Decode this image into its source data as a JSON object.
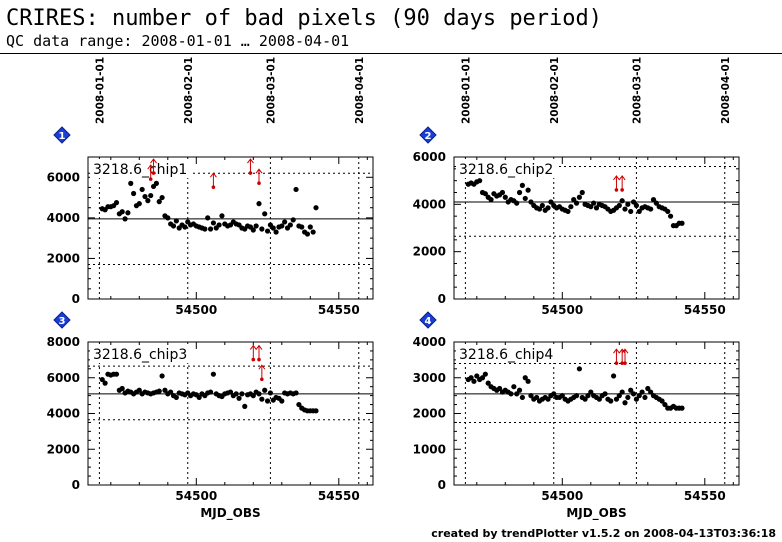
{
  "header": {
    "title": "CRIRES: number of bad pixels (90 days period)",
    "subtitle": "QC data range: 2008-01-01 … 2008-04-01"
  },
  "footer": {
    "text": "created by trendPlotter v1.5.2 on 2008-04-13T03:36:18"
  },
  "colors": {
    "points": "#000000",
    "outliers": "#cc0000",
    "badge": "#1a3fd6",
    "grid": "#000000"
  },
  "date_ticks": [
    {
      "label": "2008-01-01",
      "mjd": 54466
    },
    {
      "label": "2008-02-01",
      "mjd": 54497
    },
    {
      "label": "2008-03-01",
      "mjd": 54526
    },
    {
      "label": "2008-04-01",
      "mjd": 54557
    }
  ],
  "chart_data": [
    {
      "type": "scatter",
      "badge": "1",
      "label": "3218.6_chip1",
      "xlabel": "",
      "xlim": [
        54462,
        54562
      ],
      "ylim": [
        0,
        7000
      ],
      "yticks": [
        0,
        2000,
        4000,
        6000
      ],
      "xticks": [
        54500,
        54550
      ],
      "mean": 3950,
      "lower_limit": 1700,
      "upper_limit": 6200,
      "x": [
        54467,
        54468,
        54469,
        54470,
        54471,
        54472,
        54473,
        54474,
        54475,
        54476,
        54477,
        54478,
        54479,
        54480,
        54481,
        54482,
        54483,
        54484,
        54485,
        54486,
        54487,
        54488,
        54489,
        54490,
        54491,
        54492,
        54493,
        54494,
        54495,
        54496,
        54497,
        54498,
        54499,
        54500,
        54501,
        54502,
        54503,
        54504,
        54505,
        54506,
        54507,
        54508,
        54509,
        54510,
        54511,
        54512,
        54513,
        54514,
        54515,
        54516,
        54517,
        54518,
        54519,
        54520,
        54521,
        54522,
        54523,
        54524,
        54525,
        54526,
        54527,
        54528,
        54529,
        54530,
        54531,
        54532,
        54533,
        54534,
        54535,
        54536,
        54537,
        54538,
        54539,
        54540,
        54541,
        54542
      ],
      "y": [
        4450,
        4400,
        4550,
        4550,
        4600,
        4750,
        4200,
        4300,
        3950,
        4250,
        5700,
        5200,
        4600,
        4700,
        5400,
        5050,
        4850,
        5100,
        5550,
        5700,
        4800,
        5000,
        4100,
        4000,
        3700,
        3600,
        3850,
        3500,
        3650,
        3550,
        3800,
        3650,
        3700,
        3600,
        3550,
        3500,
        3450,
        4000,
        3450,
        3750,
        3500,
        3650,
        4100,
        3700,
        3600,
        3650,
        3800,
        3700,
        3650,
        3500,
        3450,
        3600,
        3550,
        3400,
        3600,
        4700,
        3450,
        4200,
        3350,
        3650,
        3500,
        3300,
        3550,
        3600,
        3800,
        3500,
        3650,
        3900,
        5400,
        3600,
        3550,
        3300,
        3200,
        3550,
        3300,
        4500
      ],
      "outliers": [
        {
          "x": 54484,
          "y": 6600
        },
        {
          "x": 54485,
          "y": 6900
        },
        {
          "x": 54506,
          "y": 6200
        },
        {
          "x": 54519,
          "y": 6900
        },
        {
          "x": 54522,
          "y": 6400
        }
      ]
    },
    {
      "type": "scatter",
      "badge": "2",
      "label": "3218.6_chip2",
      "xlabel": "",
      "xlim": [
        54462,
        54562
      ],
      "ylim": [
        0,
        6000
      ],
      "yticks": [
        0,
        2000,
        4000,
        6000
      ],
      "xticks": [
        54500,
        54550
      ],
      "mean": 4100,
      "lower_limit": 2650,
      "upper_limit": 5600,
      "x": [
        54467,
        54468,
        54469,
        54470,
        54471,
        54472,
        54473,
        54474,
        54475,
        54476,
        54477,
        54478,
        54479,
        54480,
        54481,
        54482,
        54483,
        54484,
        54485,
        54486,
        54487,
        54488,
        54489,
        54490,
        54491,
        54492,
        54493,
        54494,
        54495,
        54496,
        54497,
        54498,
        54499,
        54500,
        54501,
        54502,
        54503,
        54504,
        54505,
        54506,
        54507,
        54508,
        54509,
        54510,
        54511,
        54512,
        54513,
        54514,
        54515,
        54516,
        54517,
        54518,
        54519,
        54520,
        54521,
        54522,
        54523,
        54524,
        54525,
        54526,
        54527,
        54528,
        54529,
        54530,
        54531,
        54532,
        54533,
        54534,
        54535,
        54536,
        54537,
        54538,
        54539,
        54540,
        54541,
        54542
      ],
      "y": [
        4850,
        4900,
        4850,
        4950,
        5000,
        4500,
        4450,
        4300,
        4200,
        4450,
        4350,
        4400,
        4500,
        4300,
        4100,
        4200,
        4150,
        4050,
        4500,
        4800,
        4250,
        4600,
        4100,
        3950,
        3850,
        3800,
        3950,
        3750,
        3850,
        4100,
        3950,
        3850,
        3900,
        3800,
        3750,
        3700,
        3900,
        4200,
        4050,
        4300,
        4500,
        4000,
        3950,
        3900,
        4050,
        3850,
        4000,
        3950,
        3900,
        3800,
        3700,
        3750,
        3850,
        3950,
        4150,
        3800,
        4000,
        3700,
        4100,
        3950,
        3700,
        3850,
        3900,
        3850,
        3800,
        4200,
        4050,
        3900,
        3850,
        3800,
        3700,
        3500,
        3100,
        3100,
        3200,
        3200
      ],
      "outliers": [
        {
          "x": 54519,
          "y": 5200
        },
        {
          "x": 54521,
          "y": 5200
        }
      ]
    },
    {
      "type": "scatter",
      "badge": "3",
      "label": "3218.6_chip3",
      "xlabel": "MJD_OBS",
      "xlim": [
        54462,
        54562
      ],
      "ylim": [
        0,
        8000
      ],
      "yticks": [
        0,
        2000,
        4000,
        6000,
        8000
      ],
      "xticks": [
        54500,
        54550
      ],
      "mean": 5100,
      "lower_limit": 3650,
      "upper_limit": 6650,
      "x": [
        54467,
        54468,
        54469,
        54470,
        54471,
        54472,
        54473,
        54474,
        54475,
        54476,
        54477,
        54478,
        54479,
        54480,
        54481,
        54482,
        54483,
        54484,
        54485,
        54486,
        54487,
        54488,
        54489,
        54490,
        54491,
        54492,
        54493,
        54494,
        54495,
        54496,
        54497,
        54498,
        54499,
        54500,
        54501,
        54502,
        54503,
        54504,
        54505,
        54506,
        54507,
        54508,
        54509,
        54510,
        54511,
        54512,
        54513,
        54514,
        54515,
        54516,
        54517,
        54518,
        54519,
        54520,
        54521,
        54522,
        54523,
        54524,
        54525,
        54526,
        54527,
        54528,
        54529,
        54530,
        54531,
        54532,
        54533,
        54534,
        54535,
        54536,
        54537,
        54538,
        54539,
        54540,
        54541,
        54542
      ],
      "y": [
        5900,
        5700,
        6200,
        6150,
        6200,
        6200,
        5300,
        5400,
        5150,
        5250,
        5200,
        5100,
        5200,
        5300,
        5100,
        5200,
        5150,
        5100,
        5150,
        5200,
        5250,
        6100,
        5300,
        5100,
        5200,
        5000,
        4900,
        5150,
        5100,
        5050,
        5150,
        5000,
        5100,
        5050,
        4900,
        5100,
        5000,
        5150,
        5200,
        6200,
        5100,
        5000,
        4950,
        5100,
        5150,
        5200,
        5000,
        5100,
        4850,
        5100,
        4400,
        5050,
        5100,
        5000,
        5200,
        5100,
        4800,
        5300,
        4700,
        5150,
        4750,
        4900,
        4850,
        4700,
        5150,
        5100,
        5150,
        5100,
        5150,
        4500,
        4300,
        4200,
        4150,
        4150,
        4150,
        4150
      ],
      "outliers": [
        {
          "x": 54520,
          "y": 7800
        },
        {
          "x": 54522,
          "y": 7800
        },
        {
          "x": 54523,
          "y": 6700
        }
      ]
    },
    {
      "type": "scatter",
      "badge": "4",
      "label": "3218.6_chip4",
      "xlabel": "MJD_OBS",
      "xlim": [
        54462,
        54562
      ],
      "ylim": [
        0,
        4000
      ],
      "yticks": [
        0,
        1000,
        2000,
        3000,
        4000
      ],
      "xticks": [
        54500,
        54550
      ],
      "mean": 2550,
      "lower_limit": 1750,
      "upper_limit": 3400,
      "x": [
        54467,
        54468,
        54469,
        54470,
        54471,
        54472,
        54473,
        54474,
        54475,
        54476,
        54477,
        54478,
        54479,
        54480,
        54481,
        54482,
        54483,
        54484,
        54485,
        54486,
        54487,
        54488,
        54489,
        54490,
        54491,
        54492,
        54493,
        54494,
        54495,
        54496,
        54497,
        54498,
        54499,
        54500,
        54501,
        54502,
        54503,
        54504,
        54505,
        54506,
        54507,
        54508,
        54509,
        54510,
        54511,
        54512,
        54513,
        54514,
        54515,
        54516,
        54517,
        54518,
        54519,
        54520,
        54521,
        54522,
        54523,
        54524,
        54525,
        54526,
        54527,
        54528,
        54529,
        54530,
        54531,
        54532,
        54533,
        54534,
        54535,
        54536,
        54537,
        54538,
        54539,
        54540,
        54541,
        54542
      ],
      "y": [
        2950,
        3000,
        2900,
        3050,
        2950,
        3000,
        3100,
        2850,
        2750,
        2700,
        2650,
        2700,
        2600,
        2650,
        2600,
        2550,
        2750,
        2550,
        2650,
        2450,
        3000,
        2900,
        2500,
        2400,
        2450,
        2350,
        2400,
        2450,
        2400,
        2500,
        2550,
        2450,
        2450,
        2500,
        2400,
        2350,
        2400,
        2450,
        2500,
        3250,
        2450,
        2400,
        2500,
        2600,
        2500,
        2450,
        2400,
        2500,
        2550,
        2400,
        2350,
        3050,
        2400,
        2500,
        2600,
        2300,
        2450,
        2650,
        2550,
        2400,
        2500,
        2600,
        2450,
        2700,
        2600,
        2500,
        2450,
        2400,
        2350,
        2250,
        2150,
        2150,
        2200,
        2150,
        2150,
        2150
      ],
      "outliers": [
        {
          "x": 54519,
          "y": 3800
        },
        {
          "x": 54521,
          "y": 3800
        },
        {
          "x": 54522,
          "y": 3800
        }
      ]
    }
  ]
}
